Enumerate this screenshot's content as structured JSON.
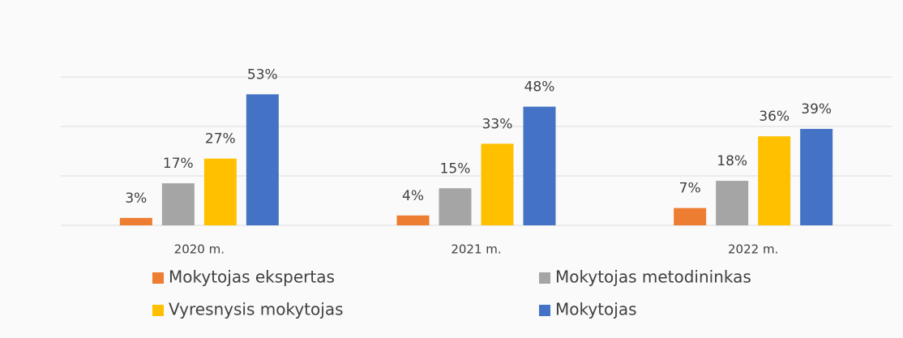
{
  "chart_data": {
    "type": "bar",
    "categories": [
      "2020 m.",
      "2021 m.",
      "2022 m."
    ],
    "series": [
      {
        "name": "Mokytojas ekspertas",
        "color": "#ed7d31",
        "values": [
          3,
          4,
          7
        ],
        "value_labels": [
          "3%",
          "4%",
          "7%"
        ]
      },
      {
        "name": "Mokytojas metodininkas",
        "color": "#a5a5a5",
        "values": [
          17,
          15,
          18
        ],
        "value_labels": [
          "17%",
          "15%",
          "18%"
        ]
      },
      {
        "name": "Vyresnysis mokytojas",
        "color": "#ffc000",
        "values": [
          27,
          33,
          36
        ],
        "value_labels": [
          "27%",
          "33%",
          "36%"
        ]
      },
      {
        "name": "Mokytojas",
        "color": "#4472c4",
        "values": [
          53,
          48,
          39
        ],
        "value_labels": [
          "53%",
          "48%",
          "39%"
        ]
      }
    ],
    "ylim": [
      0,
      60
    ],
    "yticks": [
      0,
      20,
      40,
      60
    ],
    "grid": true,
    "legend": "bottom"
  }
}
